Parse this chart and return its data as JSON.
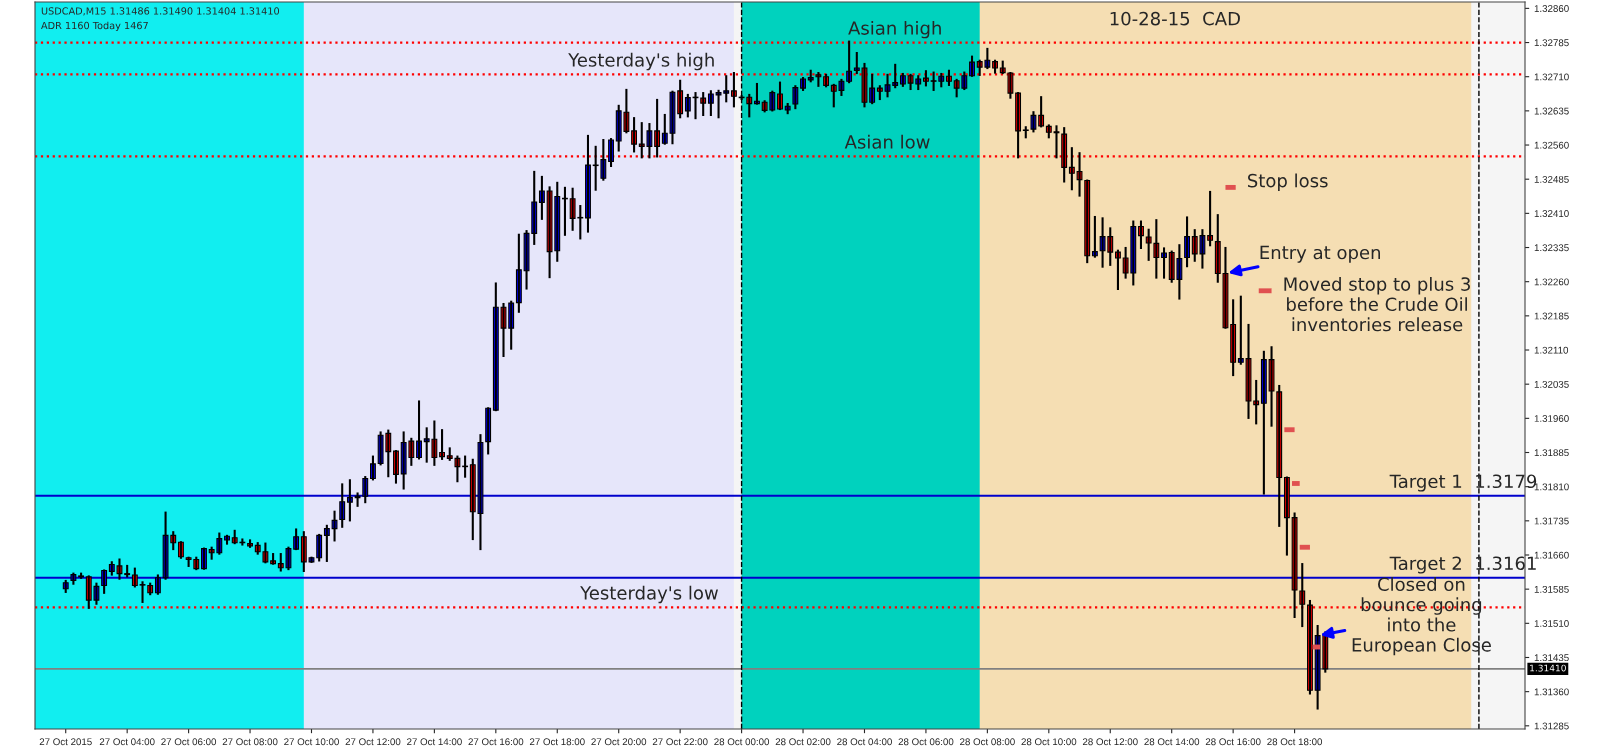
{
  "chart_data": {
    "type": "candlestick",
    "title": "10-28-15  CAD",
    "subtitle": "USDCAD,M15 1.31486 1.31490 1.31404 1.31410",
    "x": [
      "2015-10-27T02:00",
      "2015-10-27T02:15",
      "2015-10-27T02:30",
      "2015-10-27T02:45",
      "2015-10-27T03:00",
      "2015-10-27T03:15",
      "2015-10-27T03:30",
      "2015-10-27T03:45",
      "2015-10-27T04:00",
      "2015-10-27T04:15",
      "2015-10-27T04:30",
      "2015-10-27T04:45",
      "2015-10-27T05:00",
      "2015-10-27T05:15",
      "2015-10-27T05:30",
      "2015-10-27T05:45",
      "2015-10-27T06:00",
      "2015-10-27T06:15",
      "2015-10-27T06:30",
      "2015-10-27T06:45",
      "2015-10-27T07:00",
      "2015-10-27T07:15",
      "2015-10-27T07:30",
      "2015-10-27T07:45",
      "2015-10-27T08:00",
      "2015-10-27T08:15",
      "2015-10-27T08:30",
      "2015-10-27T08:45",
      "2015-10-27T09:00",
      "2015-10-27T09:15",
      "2015-10-27T09:30",
      "2015-10-27T09:45",
      "2015-10-27T10:00",
      "2015-10-27T10:15",
      "2015-10-27T10:30",
      "2015-10-27T10:45",
      "2015-10-27T11:00",
      "2015-10-27T11:15",
      "2015-10-27T11:30",
      "2015-10-27T11:45",
      "2015-10-27T12:00",
      "2015-10-27T12:15",
      "2015-10-27T12:30",
      "2015-10-27T12:45",
      "2015-10-27T13:00",
      "2015-10-27T13:15",
      "2015-10-27T13:30",
      "2015-10-27T13:45",
      "2015-10-27T14:00",
      "2015-10-27T14:15",
      "2015-10-27T14:30",
      "2015-10-27T14:45",
      "2015-10-27T15:00",
      "2015-10-27T15:15",
      "2015-10-27T15:30",
      "2015-10-27T15:45",
      "2015-10-27T16:00",
      "2015-10-27T16:15",
      "2015-10-27T16:30",
      "2015-10-27T16:45",
      "2015-10-27T17:00",
      "2015-10-27T17:15",
      "2015-10-27T17:30",
      "2015-10-27T17:45",
      "2015-10-27T18:00",
      "2015-10-27T18:15",
      "2015-10-27T18:30",
      "2015-10-27T18:45",
      "2015-10-27T19:00",
      "2015-10-27T19:15",
      "2015-10-27T19:30",
      "2015-10-27T19:45",
      "2015-10-27T20:00",
      "2015-10-27T20:15",
      "2015-10-27T20:30",
      "2015-10-27T20:45",
      "2015-10-27T21:00",
      "2015-10-27T21:15",
      "2015-10-27T21:30",
      "2015-10-27T21:45",
      "2015-10-27T22:00",
      "2015-10-27T22:15",
      "2015-10-27T22:30",
      "2015-10-27T22:45",
      "2015-10-27T23:00",
      "2015-10-27T23:15",
      "2015-10-27T23:30",
      "2015-10-27T23:45",
      "2015-10-28T00:00",
      "2015-10-28T00:15",
      "2015-10-28T00:30",
      "2015-10-28T00:45",
      "2015-10-28T01:00",
      "2015-10-28T01:15",
      "2015-10-28T01:30",
      "2015-10-28T01:45",
      "2015-10-28T02:00",
      "2015-10-28T02:15",
      "2015-10-28T02:30",
      "2015-10-28T02:45",
      "2015-10-28T03:00",
      "2015-10-28T03:15",
      "2015-10-28T03:30",
      "2015-10-28T03:45",
      "2015-10-28T04:00",
      "2015-10-28T04:15",
      "2015-10-28T04:30",
      "2015-10-28T04:45",
      "2015-10-28T05:00",
      "2015-10-28T05:15",
      "2015-10-28T05:30",
      "2015-10-28T05:45",
      "2015-10-28T06:00",
      "2015-10-28T06:15",
      "2015-10-28T06:30",
      "2015-10-28T06:45",
      "2015-10-28T07:00",
      "2015-10-28T07:15",
      "2015-10-28T07:30",
      "2015-10-28T07:45",
      "2015-10-28T08:00",
      "2015-10-28T08:15",
      "2015-10-28T08:30",
      "2015-10-28T08:45",
      "2015-10-28T09:00",
      "2015-10-28T09:15",
      "2015-10-28T09:30",
      "2015-10-28T09:45",
      "2015-10-28T10:00",
      "2015-10-28T10:15",
      "2015-10-28T10:30",
      "2015-10-28T10:45",
      "2015-10-28T11:00",
      "2015-10-28T11:15",
      "2015-10-28T11:30",
      "2015-10-28T11:45",
      "2015-10-28T12:00",
      "2015-10-28T12:15",
      "2015-10-28T12:30",
      "2015-10-28T12:45",
      "2015-10-28T13:00",
      "2015-10-28T13:15",
      "2015-10-28T13:30",
      "2015-10-28T13:45",
      "2015-10-28T14:00",
      "2015-10-28T14:15",
      "2015-10-28T14:30",
      "2015-10-28T14:45",
      "2015-10-28T15:00",
      "2015-10-28T15:15",
      "2015-10-28T15:30",
      "2015-10-28T15:45",
      "2015-10-28T16:00",
      "2015-10-28T16:15",
      "2015-10-28T16:30",
      "2015-10-28T16:45",
      "2015-10-28T17:00",
      "2015-10-28T17:15",
      "2015-10-28T17:30",
      "2015-10-28T17:45",
      "2015-10-28T18:00",
      "2015-10-28T18:15",
      "2015-10-28T18:30",
      "2015-10-28T18:45",
      "2015-10-28T19:00"
    ],
    "ohlc": [
      [
        1.31586,
        1.31603,
        1.31579,
        1.31599
      ],
      [
        1.31604,
        1.31619,
        1.31597,
        1.31617
      ],
      [
        1.31614,
        1.31619,
        1.3161,
        1.31612
      ],
      [
        1.31612,
        1.31613,
        1.31544,
        1.31561
      ],
      [
        1.31561,
        1.31597,
        1.31553,
        1.31591
      ],
      [
        1.31593,
        1.31626,
        1.31577,
        1.31626
      ],
      [
        1.31624,
        1.31644,
        1.31617,
        1.31639
      ],
      [
        1.31636,
        1.3165,
        1.31608,
        1.31619
      ],
      [
        1.31619,
        1.31636,
        1.31613,
        1.31617
      ],
      [
        1.31616,
        1.3163,
        1.31591,
        1.31593
      ],
      [
        1.31595,
        1.316,
        1.31557,
        1.31594
      ],
      [
        1.31593,
        1.31597,
        1.31574,
        1.31577
      ],
      [
        1.31577,
        1.31615,
        1.31575,
        1.3161
      ],
      [
        1.3161,
        1.31753,
        1.31608,
        1.31703
      ],
      [
        1.31703,
        1.3171,
        1.31673,
        1.31687
      ],
      [
        1.31688,
        1.31688,
        1.31654,
        1.31656
      ],
      [
        1.31654,
        1.31654,
        1.31636,
        1.3165
      ],
      [
        1.3165,
        1.31654,
        1.31629,
        1.3163
      ],
      [
        1.3163,
        1.31674,
        1.3163,
        1.31674
      ],
      [
        1.31672,
        1.31676,
        1.31652,
        1.31665
      ],
      [
        1.31665,
        1.31707,
        1.31663,
        1.31696
      ],
      [
        1.31693,
        1.31702,
        1.31685,
        1.31701
      ],
      [
        1.31698,
        1.31713,
        1.31686,
        1.31687
      ],
      [
        1.31688,
        1.31694,
        1.31683,
        1.31687
      ],
      [
        1.31685,
        1.31692,
        1.31678,
        1.3168
      ],
      [
        1.31681,
        1.31686,
        1.31663,
        1.31667
      ],
      [
        1.31667,
        1.31685,
        1.31644,
        1.31645
      ],
      [
        1.31647,
        1.31662,
        1.31641,
        1.31641
      ],
      [
        1.31641,
        1.31662,
        1.31626,
        1.31632
      ],
      [
        1.31632,
        1.31676,
        1.31629,
        1.31674
      ],
      [
        1.31673,
        1.31716,
        1.31673,
        1.317
      ],
      [
        1.317,
        1.3171,
        1.31625,
        1.31645
      ],
      [
        1.31645,
        1.31654,
        1.31645,
        1.31654
      ],
      [
        1.31654,
        1.31704,
        1.31648,
        1.31703
      ],
      [
        1.31703,
        1.31724,
        1.31647,
        1.31718
      ],
      [
        1.31718,
        1.31755,
        1.31692,
        1.31736
      ],
      [
        1.31738,
        1.31815,
        1.31722,
        1.31777
      ],
      [
        1.31776,
        1.31824,
        1.31736,
        1.31786
      ],
      [
        1.31786,
        1.31795,
        1.31768,
        1.31789
      ],
      [
        1.31789,
        1.31831,
        1.31776,
        1.31828
      ],
      [
        1.31828,
        1.31876,
        1.31826,
        1.3186
      ],
      [
        1.31861,
        1.31929,
        1.31859,
        1.31923
      ],
      [
        1.31927,
        1.31933,
        1.31833,
        1.31887
      ],
      [
        1.31888,
        1.31888,
        1.31819,
        1.31837
      ],
      [
        1.31838,
        1.31929,
        1.31806,
        1.31907
      ],
      [
        1.3191,
        1.31915,
        1.31858,
        1.31874
      ],
      [
        1.31874,
        1.31997,
        1.31872,
        1.3191
      ],
      [
        1.31909,
        1.31938,
        1.31865,
        1.31915
      ],
      [
        1.31914,
        1.31953,
        1.31858,
        1.31874
      ],
      [
        1.31885,
        1.31934,
        1.31871,
        1.31876
      ],
      [
        1.31878,
        1.31894,
        1.31869,
        1.31872
      ],
      [
        1.31872,
        1.31876,
        1.31822,
        1.31854
      ],
      [
        1.31855,
        1.31876,
        1.31832,
        1.31854
      ],
      [
        1.31858,
        1.31869,
        1.31695,
        1.31755
      ],
      [
        1.31751,
        1.31923,
        1.31673,
        1.31907
      ],
      [
        1.31909,
        1.31982,
        1.31883,
        1.31982
      ],
      [
        1.31978,
        1.32256,
        1.31978,
        1.32204
      ],
      [
        1.32204,
        1.32211,
        1.32097,
        1.32158
      ],
      [
        1.32158,
        1.32216,
        1.32113,
        1.32213
      ],
      [
        1.32214,
        1.32363,
        1.32194,
        1.32286
      ],
      [
        1.32284,
        1.32371,
        1.32245,
        1.32366
      ],
      [
        1.32366,
        1.32501,
        1.32343,
        1.32435
      ],
      [
        1.32434,
        1.3249,
        1.32398,
        1.32459
      ],
      [
        1.32459,
        1.32467,
        1.3227,
        1.32326
      ],
      [
        1.32328,
        1.32477,
        1.32306,
        1.32447
      ],
      [
        1.32443,
        1.32466,
        1.32363,
        1.32442
      ],
      [
        1.32442,
        1.32464,
        1.32374,
        1.32399
      ],
      [
        1.32401,
        1.32426,
        1.32355,
        1.324
      ],
      [
        1.324,
        1.3258,
        1.3237,
        1.32516
      ],
      [
        1.32516,
        1.32556,
        1.32462,
        1.32515
      ],
      [
        1.32487,
        1.32571,
        1.32484,
        1.32528
      ],
      [
        1.32524,
        1.32573,
        1.32514,
        1.32571
      ],
      [
        1.32569,
        1.32646,
        1.32548,
        1.32635
      ],
      [
        1.32632,
        1.32681,
        1.32588,
        1.3259
      ],
      [
        1.32591,
        1.32619,
        1.32546,
        1.32562
      ],
      [
        1.32562,
        1.32608,
        1.32533,
        1.32557
      ],
      [
        1.32557,
        1.32606,
        1.32533,
        1.32591
      ],
      [
        1.32591,
        1.32659,
        1.32535,
        1.32557
      ],
      [
        1.32564,
        1.32626,
        1.32563,
        1.32586
      ],
      [
        1.32586,
        1.32677,
        1.32564,
        1.32676
      ],
      [
        1.32679,
        1.32701,
        1.32621,
        1.32629
      ],
      [
        1.32635,
        1.3267,
        1.32623,
        1.32664
      ],
      [
        1.32665,
        1.32674,
        1.32619,
        1.32664
      ],
      [
        1.32663,
        1.32674,
        1.32626,
        1.32652
      ],
      [
        1.32652,
        1.32678,
        1.32626,
        1.32672
      ],
      [
        1.3267,
        1.32679,
        1.32621,
        1.32675
      ],
      [
        1.32674,
        1.32711,
        1.32656,
        1.32679
      ],
      [
        1.32679,
        1.32718,
        1.32645,
        1.32667
      ],
      [
        1.32665,
        1.32667,
        1.32661,
        1.32664
      ],
      [
        1.32665,
        1.3267,
        1.32623,
        1.32651
      ],
      [
        1.32651,
        1.32694,
        1.32651,
        1.32656
      ],
      [
        1.32654,
        1.32656,
        1.32634,
        1.32636
      ],
      [
        1.32637,
        1.32677,
        1.32636,
        1.32675
      ],
      [
        1.32672,
        1.32697,
        1.32639,
        1.32639
      ],
      [
        1.32637,
        1.3265,
        1.3263,
        1.32645
      ],
      [
        1.3265,
        1.32689,
        1.32641,
        1.32686
      ],
      [
        1.32685,
        1.32707,
        1.32681,
        1.32705
      ],
      [
        1.32703,
        1.32723,
        1.327,
        1.32708
      ],
      [
        1.32714,
        1.32718,
        1.3269,
        1.3271
      ],
      [
        1.3271,
        1.32714,
        1.32689,
        1.32691
      ],
      [
        1.32691,
        1.32692,
        1.32645,
        1.32678
      ],
      [
        1.3268,
        1.32703,
        1.3267,
        1.327
      ],
      [
        1.327,
        1.32787,
        1.32698,
        1.32722
      ],
      [
        1.32724,
        1.32762,
        1.32718,
        1.32729
      ],
      [
        1.32729,
        1.32738,
        1.32645,
        1.32654
      ],
      [
        1.32654,
        1.32714,
        1.32652,
        1.32685
      ],
      [
        1.32685,
        1.32689,
        1.32661,
        1.32678
      ],
      [
        1.32678,
        1.32714,
        1.32667,
        1.32692
      ],
      [
        1.32691,
        1.32736,
        1.32687,
        1.32697
      ],
      [
        1.32694,
        1.32716,
        1.3269,
        1.32712
      ],
      [
        1.32712,
        1.32714,
        1.32683,
        1.32696
      ],
      [
        1.32694,
        1.32711,
        1.32683,
        1.32705
      ],
      [
        1.32707,
        1.32722,
        1.32691,
        1.327
      ],
      [
        1.32701,
        1.32719,
        1.32681,
        1.327
      ],
      [
        1.327,
        1.32716,
        1.32689,
        1.32711
      ],
      [
        1.32711,
        1.32723,
        1.32692,
        1.327
      ],
      [
        1.32701,
        1.32703,
        1.32667,
        1.32685
      ],
      [
        1.32685,
        1.32719,
        1.32683,
        1.32712
      ],
      [
        1.32712,
        1.32754,
        1.32712,
        1.32742
      ],
      [
        1.32743,
        1.32745,
        1.32714,
        1.32731
      ],
      [
        1.32731,
        1.32771,
        1.32729,
        1.32746
      ],
      [
        1.32743,
        1.32745,
        1.32719,
        1.32729
      ],
      [
        1.32729,
        1.32743,
        1.32718,
        1.32719
      ],
      [
        1.32718,
        1.32718,
        1.32664,
        1.32674
      ],
      [
        1.32674,
        1.32674,
        1.32533,
        1.32591
      ],
      [
        1.32593,
        1.32599,
        1.32577,
        1.32592
      ],
      [
        1.32595,
        1.32632,
        1.3259,
        1.32625
      ],
      [
        1.32625,
        1.32665,
        1.32601,
        1.32602
      ],
      [
        1.32601,
        1.32603,
        1.32577,
        1.32588
      ],
      [
        1.32589,
        1.32601,
        1.32533,
        1.32587
      ],
      [
        1.32584,
        1.32597,
        1.3248,
        1.32511
      ],
      [
        1.32511,
        1.32553,
        1.32463,
        1.32498
      ],
      [
        1.32502,
        1.32542,
        1.32449,
        1.32484
      ],
      [
        1.32482,
        1.32482,
        1.32303,
        1.32317
      ],
      [
        1.32317,
        1.32402,
        1.32315,
        1.32326
      ],
      [
        1.32328,
        1.32399,
        1.32293,
        1.32359
      ],
      [
        1.32359,
        1.32377,
        1.32297,
        1.32325
      ],
      [
        1.32325,
        1.32328,
        1.32244,
        1.32312
      ],
      [
        1.32312,
        1.32334,
        1.32269,
        1.32279
      ],
      [
        1.32279,
        1.32392,
        1.32254,
        1.32381
      ],
      [
        1.32381,
        1.32392,
        1.32334,
        1.32361
      ],
      [
        1.32358,
        1.32374,
        1.32308,
        1.32345
      ],
      [
        1.32344,
        1.32395,
        1.32269,
        1.32313
      ],
      [
        1.32313,
        1.32333,
        1.32269,
        1.32323
      ],
      [
        1.32324,
        1.32326,
        1.3226,
        1.32265
      ],
      [
        1.32265,
        1.3234,
        1.32223,
        1.32311
      ],
      [
        1.32313,
        1.32401,
        1.32294,
        1.32359
      ],
      [
        1.32359,
        1.32373,
        1.32306,
        1.32321
      ],
      [
        1.32321,
        1.32373,
        1.32291,
        1.32361
      ],
      [
        1.32361,
        1.32457,
        1.3234,
        1.32351
      ],
      [
        1.32348,
        1.32406,
        1.3226,
        1.32278
      ],
      [
        1.32278,
        1.32334,
        1.32159,
        1.32159
      ],
      [
        1.32166,
        1.32219,
        1.32055,
        1.32083
      ],
      [
        1.32083,
        1.32227,
        1.3208,
        1.32091
      ],
      [
        1.32091,
        1.32165,
        1.31961,
        1.31998
      ],
      [
        1.31998,
        1.32042,
        1.31949,
        1.3199
      ],
      [
        1.31993,
        1.32106,
        1.31795,
        1.32089
      ],
      [
        1.32089,
        1.32116,
        1.31944,
        1.3202
      ],
      [
        1.32018,
        1.32031,
        1.31724,
        1.3183
      ],
      [
        1.3183,
        1.3183,
        1.31661,
        1.31742
      ],
      [
        1.31742,
        1.31751,
        1.31524,
        1.31583
      ],
      [
        1.31581,
        1.3164,
        1.31504,
        1.31552
      ],
      [
        1.3155,
        1.31559,
        1.31356,
        1.31363
      ],
      [
        1.31363,
        1.31504,
        1.31323,
        1.31483
      ],
      [
        1.31486,
        1.3149,
        1.31404,
        1.3141
      ]
    ],
    "colors": [
      "#0000ff",
      "#0000ff",
      "#ff0000",
      "#ff0000",
      "#0000ff",
      "#0000ff",
      "#0000ff",
      "#ff0000",
      "#ff0000",
      "#ff0000",
      "#ff0000",
      "#ff0000",
      "#0000ff",
      "#0000ff",
      "#ff0000",
      "#ff0000",
      "#ff0000",
      "#ff0000",
      "#0000ff",
      "#ff0000",
      "#0000ff",
      "#0000ff",
      "#ff0000",
      "#ff0000",
      "#ff0000",
      "#ff0000",
      "#ff0000",
      "#ff0000",
      "#ff0000",
      "#0000ff",
      "#0000ff",
      "#ff0000",
      "#0000ff",
      "#0000ff",
      "#0000ff",
      "#0000ff",
      "#0000ff",
      "#0000ff",
      "#0000ff",
      "#0000ff",
      "#0000ff",
      "#0000ff",
      "#ff0000",
      "#ff0000",
      "#0000ff",
      "#ff0000",
      "#0000ff",
      "#0000ff",
      "#ff0000",
      "#ff0000",
      "#ff0000",
      "#ff0000",
      "#ff0000",
      "#ff0000",
      "#0000ff",
      "#0000ff",
      "#0000ff",
      "#ff0000",
      "#0000ff",
      "#0000ff",
      "#0000ff",
      "#0000ff",
      "#0000ff",
      "#ff0000",
      "#0000ff",
      "#ff0000",
      "#ff0000",
      "#ff0000",
      "#0000ff",
      "#ff0000",
      "#0000ff",
      "#0000ff",
      "#0000ff",
      "#ff0000",
      "#ff0000",
      "#ff0000",
      "#0000ff",
      "#ff0000",
      "#0000ff",
      "#0000ff",
      "#ff0000",
      "#0000ff",
      "#ff0000",
      "#ff0000",
      "#0000ff",
      "#0000ff",
      "#0000ff",
      "#ff0000",
      "#ff0000",
      "#ff0000",
      "#0000ff",
      "#ff0000",
      "#0000ff",
      "#ff0000",
      "#0000ff",
      "#0000ff",
      "#0000ff",
      "#0000ff",
      "#ff0000",
      "#ff0000",
      "#ff0000",
      "#0000ff",
      "#0000ff",
      "#0000ff",
      "#ff0000",
      "#0000ff",
      "#ff0000",
      "#0000ff",
      "#0000ff",
      "#0000ff",
      "#ff0000",
      "#0000ff",
      "#ff0000",
      "#ff0000",
      "#0000ff",
      "#ff0000",
      "#ff0000",
      "#0000ff",
      "#0000ff",
      "#ff0000",
      "#0000ff",
      "#ff0000",
      "#ff0000",
      "#ff0000",
      "#ff0000",
      "#ff0000",
      "#0000ff",
      "#ff0000",
      "#ff0000",
      "#ff0000",
      "#ff0000",
      "#ff0000",
      "#ff0000",
      "#ff0000",
      "#0000ff",
      "#0000ff",
      "#ff0000",
      "#ff0000",
      "#ff0000",
      "#0000ff",
      "#ff0000",
      "#ff0000",
      "#ff0000",
      "#0000ff",
      "#ff0000",
      "#0000ff",
      "#0000ff",
      "#ff0000",
      "#0000ff",
      "#ff0000",
      "#ff0000",
      "#ff0000",
      "#ff0000",
      "#0000ff",
      "#ff0000",
      "#ff0000",
      "#0000ff",
      "#ff0000",
      "#ff0000",
      "#ff0000",
      "#ff0000",
      "#ff0000",
      "#ff0000",
      "#0000ff",
      "#ff0000"
    ],
    "xlim": [
      "2015-10-27T01:00",
      "2015-10-29T01:30"
    ],
    "xticks": [
      {
        "value": "2015-10-27T02:00",
        "label": "27 Oct 2015"
      },
      {
        "value": "2015-10-27T04:00",
        "label": "27 Oct 04:00"
      },
      {
        "value": "2015-10-27T06:00",
        "label": "27 Oct 06:00"
      },
      {
        "value": "2015-10-27T08:00",
        "label": "27 Oct 08:00"
      },
      {
        "value": "2015-10-27T10:00",
        "label": "27 Oct 10:00"
      },
      {
        "value": "2015-10-27T12:00",
        "label": "27 Oct 12:00"
      },
      {
        "value": "2015-10-27T14:00",
        "label": "27 Oct 14:00"
      },
      {
        "value": "2015-10-27T16:00",
        "label": "27 Oct 16:00"
      },
      {
        "value": "2015-10-27T18:00",
        "label": "27 Oct 18:00"
      },
      {
        "value": "2015-10-27T20:00",
        "label": "27 Oct 20:00"
      },
      {
        "value": "2015-10-27T22:00",
        "label": "27 Oct 22:00"
      },
      {
        "value": "2015-10-28T00:00",
        "label": "28 Oct 00:00"
      },
      {
        "value": "2015-10-28T02:00",
        "label": "28 Oct 02:00"
      },
      {
        "value": "2015-10-28T04:00",
        "label": "28 Oct 04:00"
      },
      {
        "value": "2015-10-28T06:00",
        "label": "28 Oct 06:00"
      },
      {
        "value": "2015-10-28T08:00",
        "label": "28 Oct 08:00"
      },
      {
        "value": "2015-10-28T10:00",
        "label": "28 Oct 10:00"
      },
      {
        "value": "2015-10-28T12:00",
        "label": "28 Oct 12:00"
      },
      {
        "value": "2015-10-28T14:00",
        "label": "28 Oct 14:00"
      },
      {
        "value": "2015-10-28T16:00",
        "label": "28 Oct 16:00"
      },
      {
        "value": "2015-10-28T18:00",
        "label": "28 Oct 18:00"
      }
    ],
    "ylim": [
      1.31278,
      1.32874
    ],
    "yticks": [
      {
        "value": 1.3286,
        "label": "1.32860"
      },
      {
        "value": 1.32785,
        "label": "1.32785"
      },
      {
        "value": 1.3271,
        "label": "1.32710"
      },
      {
        "value": 1.32635,
        "label": "1.32635"
      },
      {
        "value": 1.3256,
        "label": "1.32560"
      },
      {
        "value": 1.32485,
        "label": "1.32485"
      },
      {
        "value": 1.3241,
        "label": "1.32410"
      },
      {
        "value": 1.32335,
        "label": "1.32335"
      },
      {
        "value": 1.3226,
        "label": "1.32260"
      },
      {
        "value": 1.32185,
        "label": "1.32185"
      },
      {
        "value": 1.3211,
        "label": "1.32110"
      },
      {
        "value": 1.32035,
        "label": "1.32035"
      },
      {
        "value": 1.3196,
        "label": "1.31960"
      },
      {
        "value": 1.31885,
        "label": "1.31885"
      },
      {
        "value": 1.3181,
        "label": "1.31810"
      },
      {
        "value": 1.31735,
        "label": "1.31735"
      },
      {
        "value": 1.3166,
        "label": "1.31660"
      },
      {
        "value": 1.31585,
        "label": "1.31585"
      },
      {
        "value": 1.3151,
        "label": "1.31510"
      },
      {
        "value": 1.31435,
        "label": "1.31435"
      },
      {
        "value": 1.3136,
        "label": "1.31360"
      },
      {
        "value": 1.31285,
        "label": "1.31285"
      }
    ],
    "bands": [
      {
        "axis": "x",
        "from": "2015-10-27T01:00",
        "to": "2015-10-27T23:45",
        "color": "#e6e6fa"
      },
      {
        "axis": "x",
        "from": "2015-10-27T01:00",
        "to": "2015-10-27T09:45",
        "color": "#11eef0"
      },
      {
        "axis": "x",
        "from": "2015-10-28T00:00",
        "to": "2015-10-28T23:45",
        "color": "#f5deb3"
      },
      {
        "axis": "x",
        "from": "2015-10-28T00:00",
        "to": "2015-10-28T07:45",
        "color": "#00d2be"
      }
    ],
    "ref_lines": [
      {
        "axis": "y",
        "value": 1.3179,
        "color": "#0000cc",
        "line_style": "solid"
      },
      {
        "axis": "y",
        "value": 1.3161,
        "color": "#0000cc",
        "line_style": "solid"
      },
      {
        "axis": "y",
        "value": 1.32785,
        "color": "#ff0000",
        "line_style": "dotted"
      },
      {
        "axis": "y",
        "value": 1.32715,
        "color": "#ff0000",
        "line_style": "dotted"
      },
      {
        "axis": "y",
        "value": 1.32535,
        "color": "#ff0000",
        "line_style": "dotted"
      },
      {
        "axis": "y",
        "value": 1.31545,
        "color": "#ff0000",
        "line_style": "dotted"
      },
      {
        "axis": "y",
        "value": 1.3141,
        "label": "1.31410",
        "color": "#808080",
        "line_style": "solid"
      },
      {
        "axis": "x",
        "value": "2015-10-28T00:00",
        "color": "#000000",
        "line_style": "dashed"
      },
      {
        "axis": "x",
        "value": "2015-10-29T00:00",
        "color": "#000000",
        "line_style": "dashed"
      }
    ],
    "series": [
      {
        "type": "line",
        "color": "#e05050",
        "x": [
          "2015-10-28T15:45",
          "2015-10-28T16:05"
        ],
        "values": [
          1.32467,
          1.32467
        ]
      },
      {
        "type": "line",
        "color": "#e05050",
        "x": [
          "2015-10-28T16:50",
          "2015-10-28T17:15"
        ],
        "values": [
          1.3224,
          1.3224
        ]
      },
      {
        "type": "line",
        "color": "#e05050",
        "x": [
          "2015-10-28T17:40",
          "2015-10-28T18:00"
        ],
        "values": [
          1.31935,
          1.31935
        ]
      },
      {
        "type": "line",
        "color": "#e05050",
        "x": [
          "2015-10-28T17:55",
          "2015-10-28T18:10"
        ],
        "values": [
          1.31817,
          1.31817
        ]
      },
      {
        "type": "line",
        "color": "#e05050",
        "x": [
          "2015-10-28T18:10",
          "2015-10-28T18:30"
        ],
        "values": [
          1.31677,
          1.31677
        ]
      },
      {
        "type": "line",
        "color": "#e05050",
        "x": [
          "2015-10-28T18:35",
          "2015-10-28T18:50"
        ],
        "values": [
          1.31458,
          1.31458
        ]
      }
    ],
    "annotations": [
      "ADR 1160 Today 1467",
      {
        "text": "Asian high",
        "x": "2015-10-28T05:00",
        "y": 1.32785
      },
      {
        "text": "Yesterday's high",
        "x": "2015-10-27T20:45",
        "y": 1.32715
      },
      {
        "text": "Asian low",
        "x": "2015-10-28T04:45",
        "y": 1.32535
      },
      {
        "text": "Yesterday's low",
        "x": "2015-10-27T21:00",
        "y": 1.31545
      },
      {
        "text": "Stop loss",
        "x": "2015-10-28T16:05",
        "y": 1.32467
      },
      {
        "text": "Entry at open",
        "x": "2015-10-28T15:45",
        "y": 1.32278
      },
      {
        "text": "Moved stop to plus 3\nbefore the Crude Oil\ninventories release",
        "x": "2015-10-28T17:15",
        "y": 1.3224
      },
      {
        "text": "Closed on\nbounce going\ninto the\nEuropean Close",
        "x": "2015-10-28T18:45",
        "y": 1.31483
      },
      {
        "text": "Target 1  1.3179",
        "x": "2015-10-28T23:30",
        "y": 1.3179
      },
      {
        "text": "Target 2  1.3161",
        "x": "2015-10-28T23:30",
        "y": 1.3161
      }
    ]
  }
}
